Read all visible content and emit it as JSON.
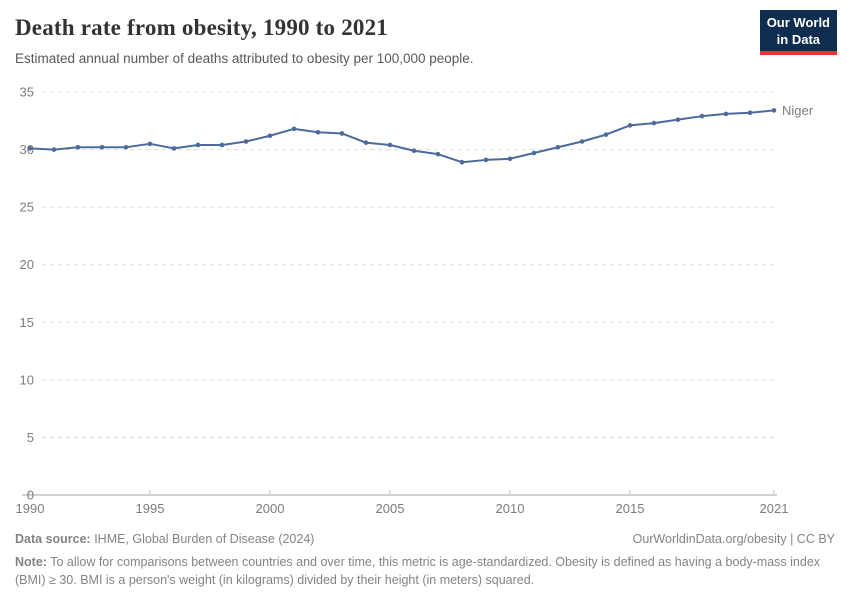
{
  "header": {
    "title": "Death rate from obesity, 1990 to 2021",
    "subtitle": "Estimated annual number of deaths attributed to obesity per 100,000 people.",
    "logo": {
      "line1": "Our World",
      "line2": "in Data",
      "bg_color": "#0f2d4e",
      "accent_color": "#d93a34"
    }
  },
  "chart_data": {
    "type": "line",
    "title": "Death rate from obesity, 1990 to 2021",
    "xlabel": "",
    "ylabel": "",
    "ylim": [
      0,
      35
    ],
    "yticks": [
      0,
      5,
      10,
      15,
      20,
      25,
      30,
      35
    ],
    "xticks": [
      1990,
      1995,
      2000,
      2005,
      2010,
      2015,
      2021
    ],
    "grid": "horizontal-dashed",
    "legend_position": "end-of-line-label",
    "x": [
      1990,
      1991,
      1992,
      1993,
      1994,
      1995,
      1996,
      1997,
      1998,
      1999,
      2000,
      2001,
      2002,
      2003,
      2004,
      2005,
      2006,
      2007,
      2008,
      2009,
      2010,
      2011,
      2012,
      2013,
      2014,
      2015,
      2016,
      2017,
      2018,
      2019,
      2020,
      2021
    ],
    "series": [
      {
        "name": "Niger",
        "color": "#4c6a9c",
        "values": [
          30.1,
          30.0,
          30.2,
          30.2,
          30.2,
          30.5,
          30.1,
          30.4,
          30.4,
          30.7,
          31.2,
          31.8,
          31.5,
          31.4,
          30.6,
          30.4,
          29.9,
          29.6,
          28.9,
          29.1,
          29.2,
          29.7,
          30.2,
          30.7,
          31.3,
          32.1,
          32.3,
          32.6,
          32.9,
          33.1,
          33.2,
          33.4
        ]
      }
    ],
    "colors": {
      "line": "#4c6a9c",
      "gridline": "#dcdcdc",
      "axis": "#a3a3a3",
      "tick_label": "#7d7d7d"
    }
  },
  "footer": {
    "datasource_label": "Data source:",
    "datasource": " IHME, Global Burden of Disease (2024)",
    "rights": "OurWorldinData.org/obesity | CC BY",
    "note_label": "Note:",
    "note": " To allow for comparisons between countries and over time, this metric is age-standardized. Obesity is defined as having a body-mass index (BMI) ≥ 30. BMI is a person's weight (in kilograms) divided by their height (in meters) squared."
  }
}
